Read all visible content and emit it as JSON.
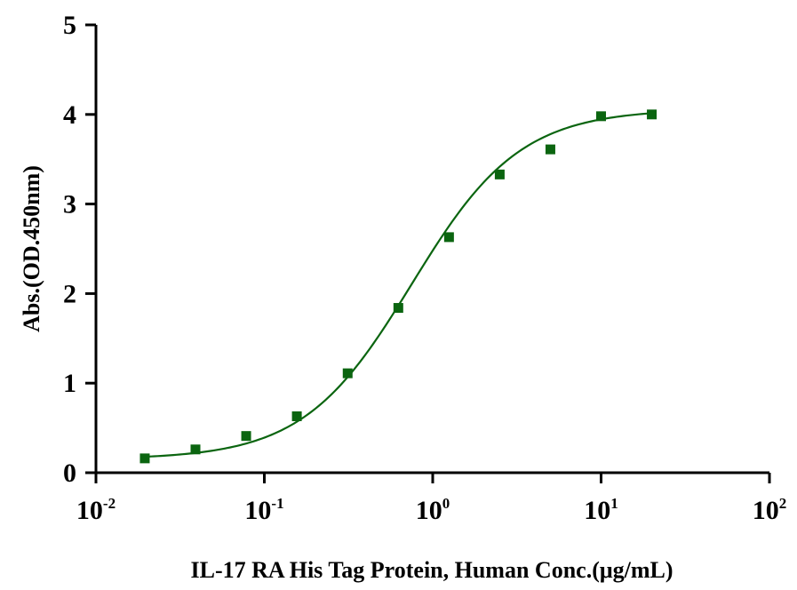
{
  "chart_data": {
    "type": "scatter",
    "xlabel": "IL-17 RA His Tag Protein, Human Conc.(μg/mL)",
    "ylabel": "Abs.(OD.450nm)",
    "x_scale": "log",
    "xlim": [
      0.01,
      100
    ],
    "ylim": [
      0,
      5
    ],
    "x_ticks": [
      {
        "base": "10",
        "exp": "-2"
      },
      {
        "base": "10",
        "exp": "-1"
      },
      {
        "base": "10",
        "exp": "0"
      },
      {
        "base": "10",
        "exp": "1"
      },
      {
        "base": "10",
        "exp": "2"
      }
    ],
    "y_ticks": [
      "0",
      "1",
      "2",
      "3",
      "4",
      "5"
    ],
    "grid": false,
    "color": "#0b6510",
    "series": [
      {
        "x": [
          0.0195,
          0.039,
          0.078,
          0.156,
          0.3125,
          0.625,
          1.25,
          2.5,
          5,
          10,
          20
        ],
        "y": [
          0.16,
          0.26,
          0.41,
          0.63,
          1.11,
          1.84,
          2.63,
          3.33,
          3.61,
          3.98,
          4.0
        ]
      }
    ],
    "fit_curve": {
      "type": "4PL",
      "bottom": 0.15,
      "top": 4.06,
      "ec50": 0.75,
      "hill": 1.35
    }
  }
}
